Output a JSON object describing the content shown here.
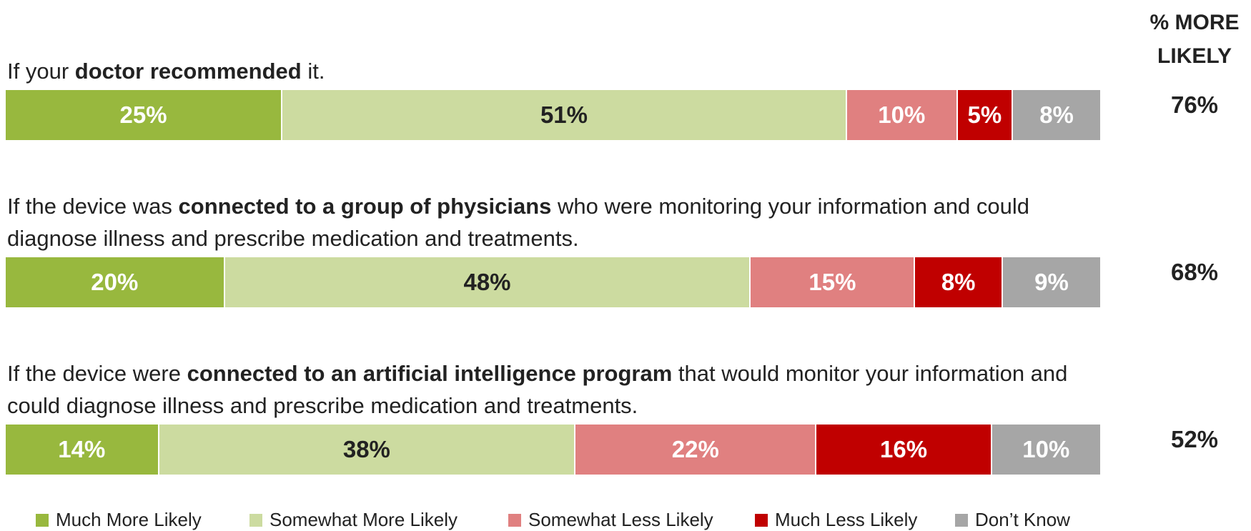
{
  "chart_data": {
    "type": "stacked-bar",
    "categories": [
      [
        "If your ",
        "doctor recommended",
        " it."
      ],
      [
        "If the device was ",
        "connected to a group of physicians",
        " who were monitoring your information and could diagnose illness and prescribe medication and treatments."
      ],
      [
        "If the device were ",
        "connected to an artificial intelligence program",
        " that would monitor your information and could diagnose illness and prescribe medication and treatments."
      ]
    ],
    "series": [
      {
        "name": "Much More Likely",
        "color": "#98b83e",
        "values": [
          25,
          20,
          14
        ],
        "value_labels": [
          "25%",
          "20%",
          "14%"
        ]
      },
      {
        "name": "Somewhat More Likely",
        "color": "#ccdba0",
        "values": [
          51,
          48,
          38
        ],
        "value_labels": [
          "51%",
          "48%",
          "38%"
        ]
      },
      {
        "name": "Somewhat Less Likely",
        "color": "#e08080",
        "values": [
          10,
          15,
          22
        ],
        "value_labels": [
          "10%",
          "15%",
          "22%"
        ]
      },
      {
        "name": "Much Less Likely",
        "color": "#c00000",
        "values": [
          5,
          8,
          16
        ],
        "value_labels": [
          "5%",
          "8%",
          "16%"
        ]
      },
      {
        "name": "Don’t Know",
        "color": "#a6a6a6",
        "values": [
          8,
          9,
          10
        ],
        "value_labels": [
          "8%",
          "9%",
          "10%"
        ]
      }
    ],
    "totals": {
      "title": "% MORE LIKELY",
      "values": [
        76,
        68,
        52
      ],
      "value_labels": [
        "76%",
        "68%",
        "52%"
      ]
    }
  }
}
